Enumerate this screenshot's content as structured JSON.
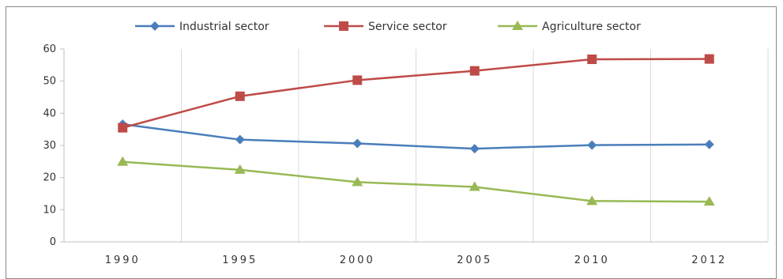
{
  "chart_data": {
    "type": "line",
    "categories": [
      "1990",
      "1995",
      "2000",
      "2005",
      "2010",
      "2012"
    ],
    "series": [
      {
        "name": "Industrial sector",
        "values": [
          36.6,
          31.8,
          30.6,
          29.0,
          30.1,
          30.3
        ],
        "color": "#4A7EBB",
        "marker": "diamond"
      },
      {
        "name": "Service sector",
        "values": [
          35.5,
          45.3,
          50.3,
          53.2,
          56.8,
          56.9
        ],
        "color": "#BE4B48",
        "marker": "square"
      },
      {
        "name": "Agriculture sector",
        "values": [
          24.9,
          22.4,
          18.6,
          17.1,
          12.7,
          12.5
        ],
        "color": "#98B954",
        "marker": "triangle"
      }
    ],
    "ylim": [
      0,
      60
    ],
    "yticks": [
      "0",
      "10",
      "20",
      "30",
      "40",
      "50",
      "60"
    ],
    "xlabel": "",
    "ylabel": "",
    "title": "",
    "grid": "vertical",
    "legend_position": "top"
  }
}
